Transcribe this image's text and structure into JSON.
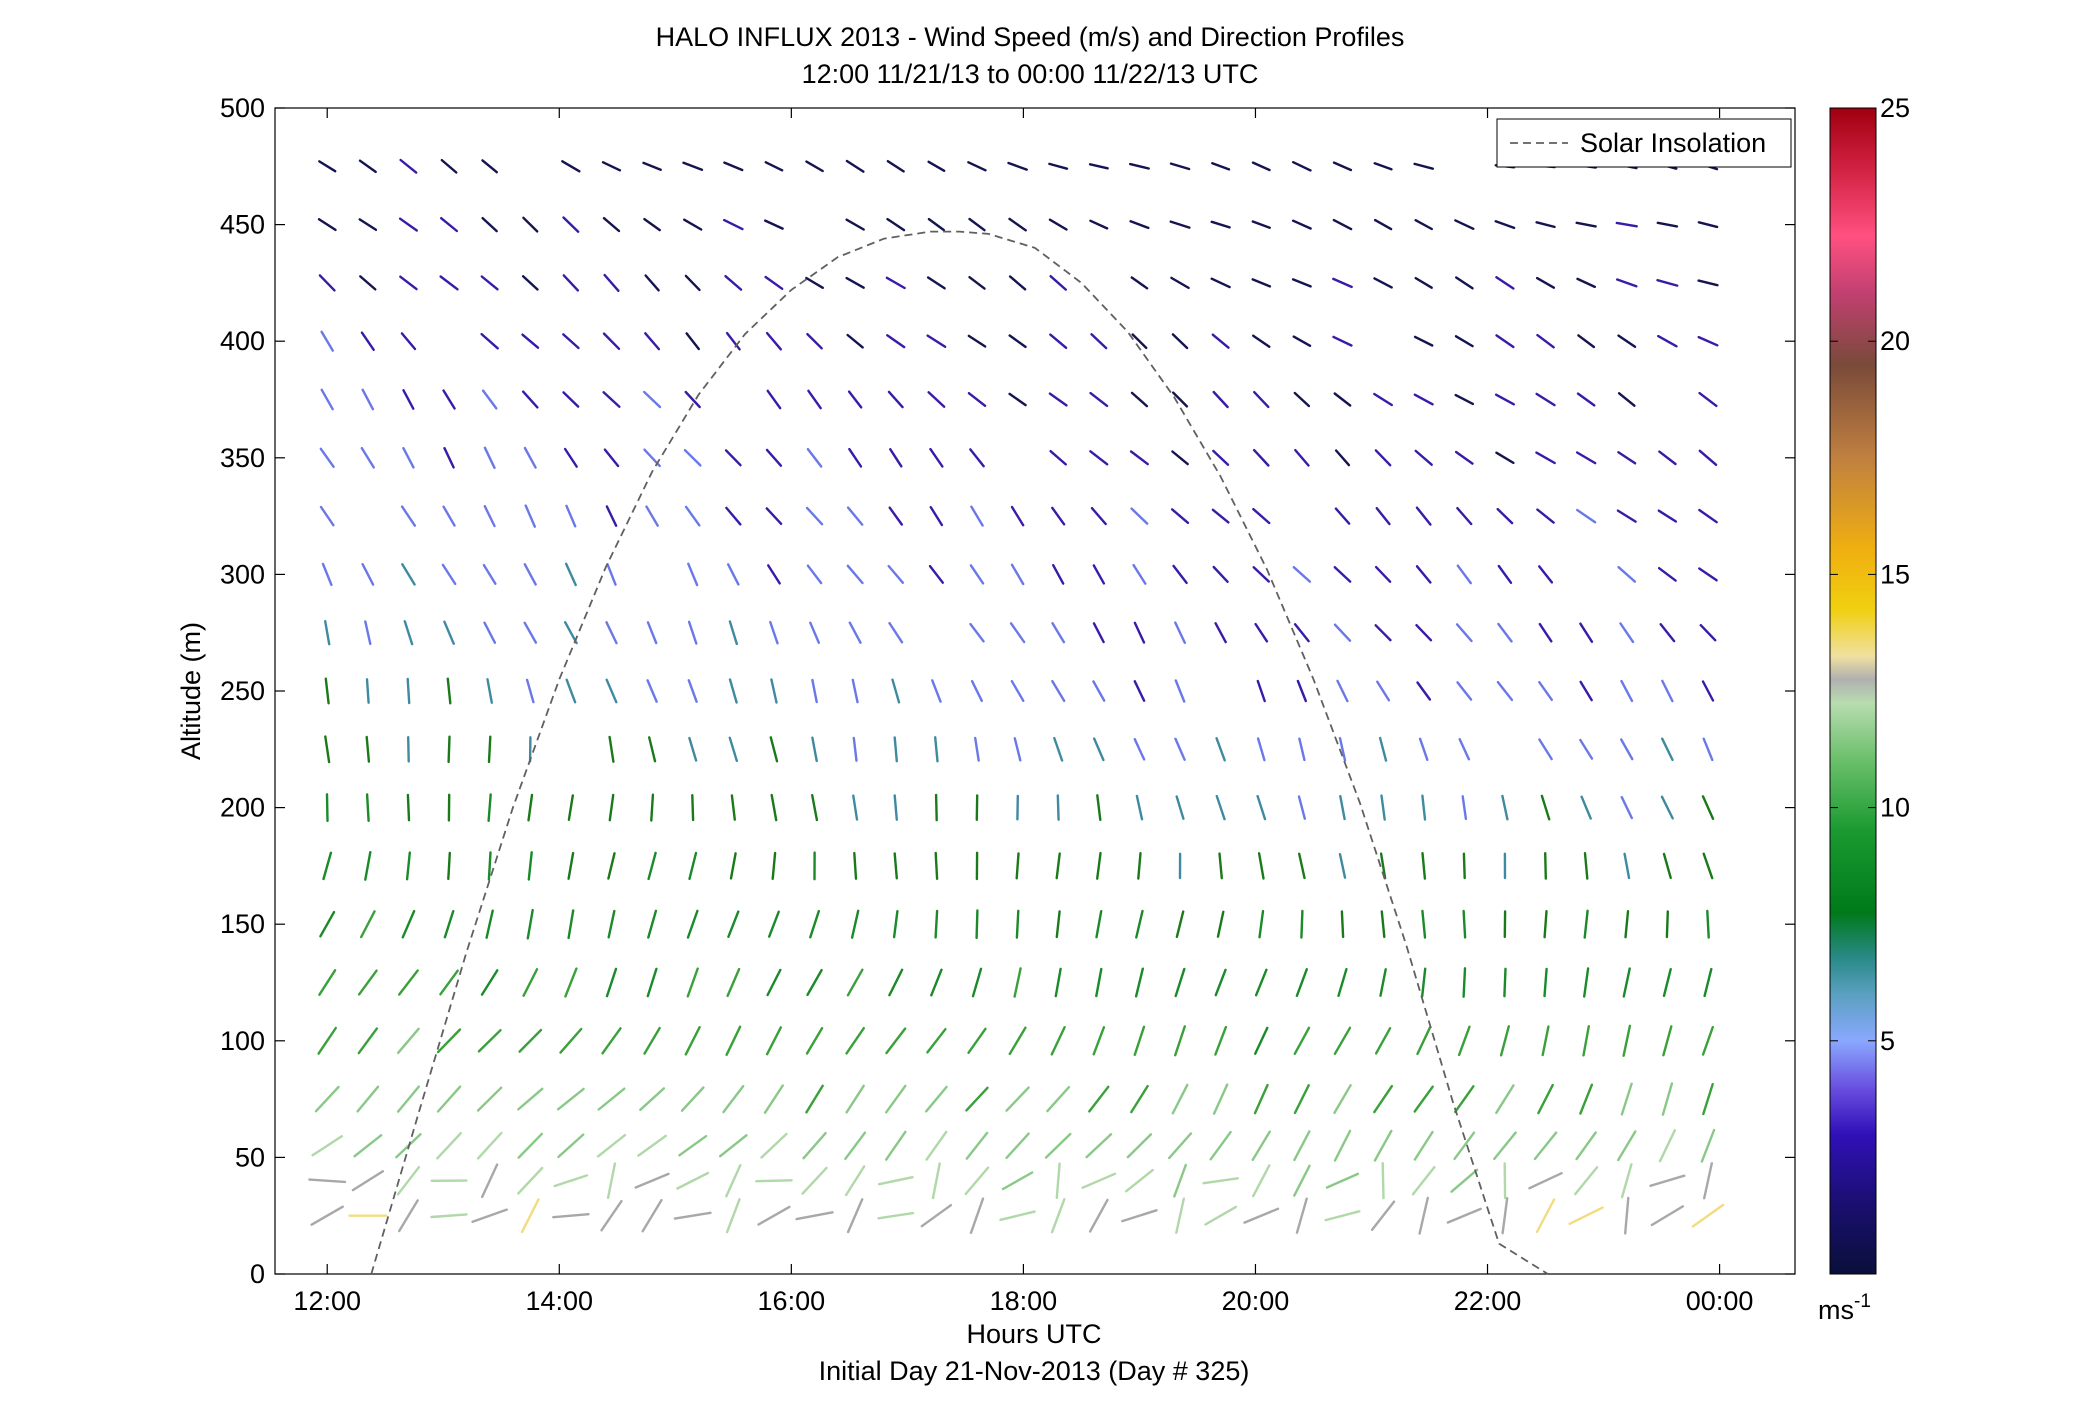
{
  "chart_data": {
    "type": "quiver",
    "title": "HALO INFLUX 2013 - Wind Speed (m/s) and Direction Profiles",
    "subtitle": "12:00 11/21/13 to 00:00 11/22/13  UTC",
    "xlabel": "Hours UTC",
    "xlabel2": "Initial Day 21-Nov-2013 (Day # 325)",
    "ylabel": "Altitude (m)",
    "xlim": [
      11.55,
      24.65
    ],
    "ylim": [
      0,
      500
    ],
    "x_ticks": [
      12,
      14,
      16,
      18,
      20,
      22,
      24
    ],
    "x_tick_labels": [
      "12:00",
      "14:00",
      "16:00",
      "18:00",
      "20:00",
      "22:00",
      "00:00"
    ],
    "y_ticks": [
      0,
      50,
      100,
      150,
      200,
      250,
      300,
      350,
      400,
      450,
      500
    ],
    "y_tick_labels": [
      "0",
      "50",
      "100",
      "150",
      "200",
      "250",
      "300",
      "350",
      "400",
      "450",
      "500"
    ],
    "legend": {
      "position": "top-right",
      "entries": [
        "Solar Insolation"
      ]
    },
    "colorbar": {
      "min": 0,
      "max": 25,
      "ticks": [
        5,
        10,
        15,
        20,
        25
      ],
      "tick_labels": [
        "5",
        "10",
        "15",
        "20",
        "25"
      ],
      "unit_base": "ms",
      "unit_exp": "-1"
    },
    "solar_insolation": {
      "name": "Solar Insolation",
      "x": [
        12.38,
        12.8,
        13.2,
        13.6,
        14.0,
        14.4,
        14.8,
        15.2,
        15.6,
        16.0,
        16.4,
        16.8,
        17.2,
        17.45,
        17.7,
        18.1,
        18.5,
        18.9,
        19.3,
        19.7,
        20.1,
        20.5,
        20.9,
        21.3,
        21.7,
        22.1,
        22.52
      ],
      "y": [
        0,
        71,
        138,
        200,
        255,
        303,
        344,
        377,
        403,
        422,
        436,
        444,
        447,
        447,
        446,
        440,
        425,
        404,
        376,
        342,
        302,
        255,
        202,
        141,
        74,
        13,
        0
      ],
      "color": "#606060",
      "style": "dashed"
    },
    "wind_profiles": {
      "times": [
        12.0,
        12.35,
        12.7,
        13.05,
        13.4,
        13.75,
        14.1,
        14.45,
        14.8,
        15.15,
        15.5,
        15.85,
        16.2,
        16.55,
        16.9,
        17.25,
        17.6,
        17.95,
        18.3,
        18.65,
        19.0,
        19.35,
        19.7,
        20.05,
        20.4,
        20.75,
        21.1,
        21.45,
        21.8,
        22.15,
        22.5,
        22.85,
        23.2,
        23.55,
        23.9
      ],
      "altitudes": [
        25,
        40,
        55,
        75,
        100,
        125,
        150,
        175,
        200,
        225,
        250,
        275,
        300,
        325,
        350,
        375,
        400,
        425,
        450,
        475
      ],
      "speed_levels_ms": [
        12.9,
        10.2,
        7.8,
        6.0,
        4.8,
        4.0,
        3.2,
        2.2
      ],
      "direction_levels_deg": [
        240,
        225,
        200,
        180,
        160,
        150,
        140,
        125
      ]
    }
  }
}
